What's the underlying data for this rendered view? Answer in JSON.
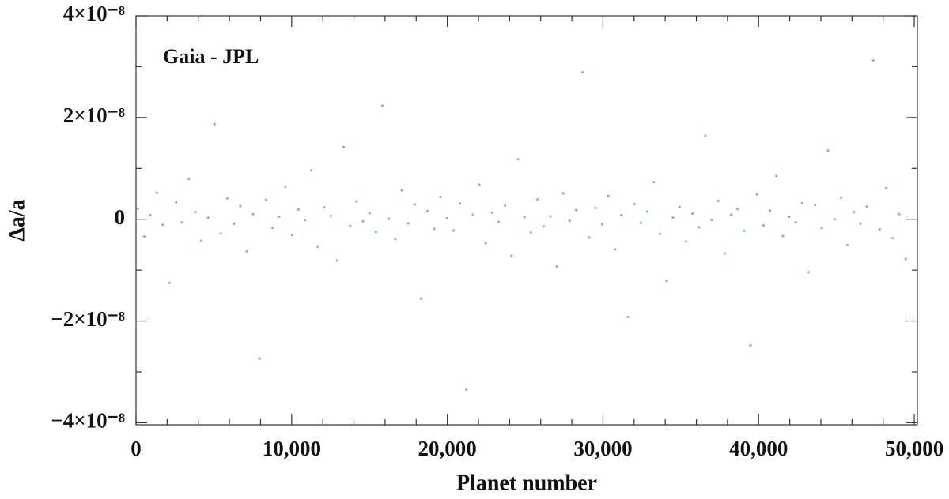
{
  "chart_data": {
    "type": "scatter",
    "annotation": "Gaia - JPL",
    "xlabel": "Planet number",
    "ylabel": "Δa/a",
    "color": "#4cae4c",
    "xlim": [
      0,
      50200
    ],
    "ylim": [
      -4.04e-08,
      4e-08
    ],
    "xticks": [
      0,
      {
        "value": 10000,
        "label": "10,000"
      },
      {
        "value": 20000,
        "label": "20,000"
      },
      {
        "value": 30000,
        "label": "30,000"
      },
      {
        "value": 40000,
        "label": "40,000"
      },
      {
        "value": 50000,
        "label": "50,000"
      }
    ],
    "xminorticks": [
      2000,
      4000,
      6000,
      8000,
      12000,
      14000,
      16000,
      18000,
      22000,
      24000,
      26000,
      28000,
      32000,
      34000,
      36000,
      38000,
      42000,
      44000,
      46000,
      48000
    ],
    "yticks": [
      {
        "value": -4e-08,
        "label": "−4×10⁻⁸"
      },
      {
        "value": -2e-08,
        "label": "−2×10⁻⁸"
      },
      0,
      {
        "value": 2e-08,
        "label": "2×10⁻⁸"
      },
      {
        "value": 4e-08,
        "label": "4×10⁻⁸"
      }
    ],
    "yminorticks": [
      -3e-08,
      -1e-08,
      1e-08,
      3e-08
    ],
    "x": [
      120,
      530,
      910,
      1340,
      1720,
      2150,
      2580,
      2960,
      3390,
      3810,
      4200,
      4630,
      5050,
      5440,
      5870,
      6290,
      6700,
      7110,
      7530,
      7940,
      8360,
      8770,
      9190,
      9600,
      10020,
      10430,
      10850,
      11260,
      11680,
      12090,
      12510,
      12920,
      13340,
      13750,
      14170,
      14580,
      15000,
      15410,
      15830,
      16240,
      16660,
      17070,
      17490,
      17900,
      18320,
      18730,
      19150,
      19560,
      19980,
      20390,
      20810,
      21220,
      21640,
      22050,
      22470,
      22880,
      23300,
      23710,
      24130,
      24540,
      24960,
      25370,
      25790,
      26200,
      26620,
      27030,
      27450,
      27860,
      28280,
      28690,
      29110,
      29520,
      29940,
      30350,
      30770,
      31180,
      31600,
      32010,
      32430,
      32840,
      33260,
      33670,
      34090,
      34500,
      34920,
      35330,
      35750,
      36160,
      36580,
      36990,
      37410,
      37820,
      38240,
      38650,
      39070,
      39480,
      39900,
      40310,
      40730,
      41140,
      41560,
      41970,
      42390,
      42800,
      43220,
      43630,
      44050,
      44460,
      44880,
      45290,
      45710,
      46120,
      46540,
      46950,
      47370,
      47780,
      48200,
      48610,
      49030,
      49440
    ],
    "values": [
      2.1e-09,
      -3.4e-09,
      8e-10,
      5.2e-09,
      -1.1e-09,
      -1.25e-08,
      3.3e-09,
      -6e-10,
      7.9e-09,
      1.4e-09,
      -4.2e-09,
      3e-10,
      1.87e-08,
      -2.8e-09,
      4.1e-09,
      -9e-10,
      2.6e-09,
      -6.3e-09,
      1e-09,
      -2.74e-08,
      3.8e-09,
      -1.7e-09,
      5e-10,
      6.4e-09,
      -3.1e-09,
      1.9e-09,
      -2e-10,
      9.6e-09,
      -5.4e-09,
      2.3e-09,
      7e-10,
      -8.1e-09,
      1.42e-08,
      -1.3e-09,
      3.5e-09,
      -4e-10,
      1.2e-09,
      -2.5e-09,
      2.23e-08,
      1e-10,
      -3.9e-09,
      5.7e-09,
      -8e-10,
      2.9e-09,
      -1.56e-08,
      1.6e-09,
      -1.9e-09,
      4.4e-09,
      2e-10,
      -2.2e-09,
      3.1e-09,
      -3.35e-08,
      9e-10,
      6.8e-09,
      -4.7e-09,
      1.3e-09,
      -5e-10,
      2.7e-09,
      -7.2e-09,
      1.18e-08,
      4e-10,
      -2.6e-09,
      3.9e-09,
      -1.4e-09,
      6e-10,
      -9.3e-09,
      5.1e-09,
      -3e-10,
      1.8e-09,
      2.89e-08,
      -3.6e-09,
      2.2e-09,
      -1e-09,
      4.6e-09,
      -5.9e-09,
      8e-10,
      -1.92e-08,
      3e-09,
      -7e-10,
      1.5e-09,
      7.3e-09,
      -2.9e-09,
      -1.21e-08,
      3e-10,
      2.4e-09,
      -4.4e-09,
      1.1e-09,
      -1.6e-09,
      1.64e-08,
      -1e-10,
      3.6e-09,
      -6.7e-09,
      9e-10,
      2e-09,
      -2.3e-09,
      -2.48e-08,
      4.9e-09,
      -1.2e-09,
      1.7e-09,
      8.5e-09,
      -3.3e-09,
      5e-10,
      -6e-10,
      3.2e-09,
      -1.04e-08,
      2.8e-09,
      -1.8e-09,
      1.35e-08,
      0,
      4.2e-09,
      -5.1e-09,
      1.4e-09,
      -9e-10,
      2.5e-09,
      3.12e-08,
      -2e-09,
      6.1e-09,
      -3.7e-09,
      1e-09,
      -7.8e-09
    ]
  }
}
